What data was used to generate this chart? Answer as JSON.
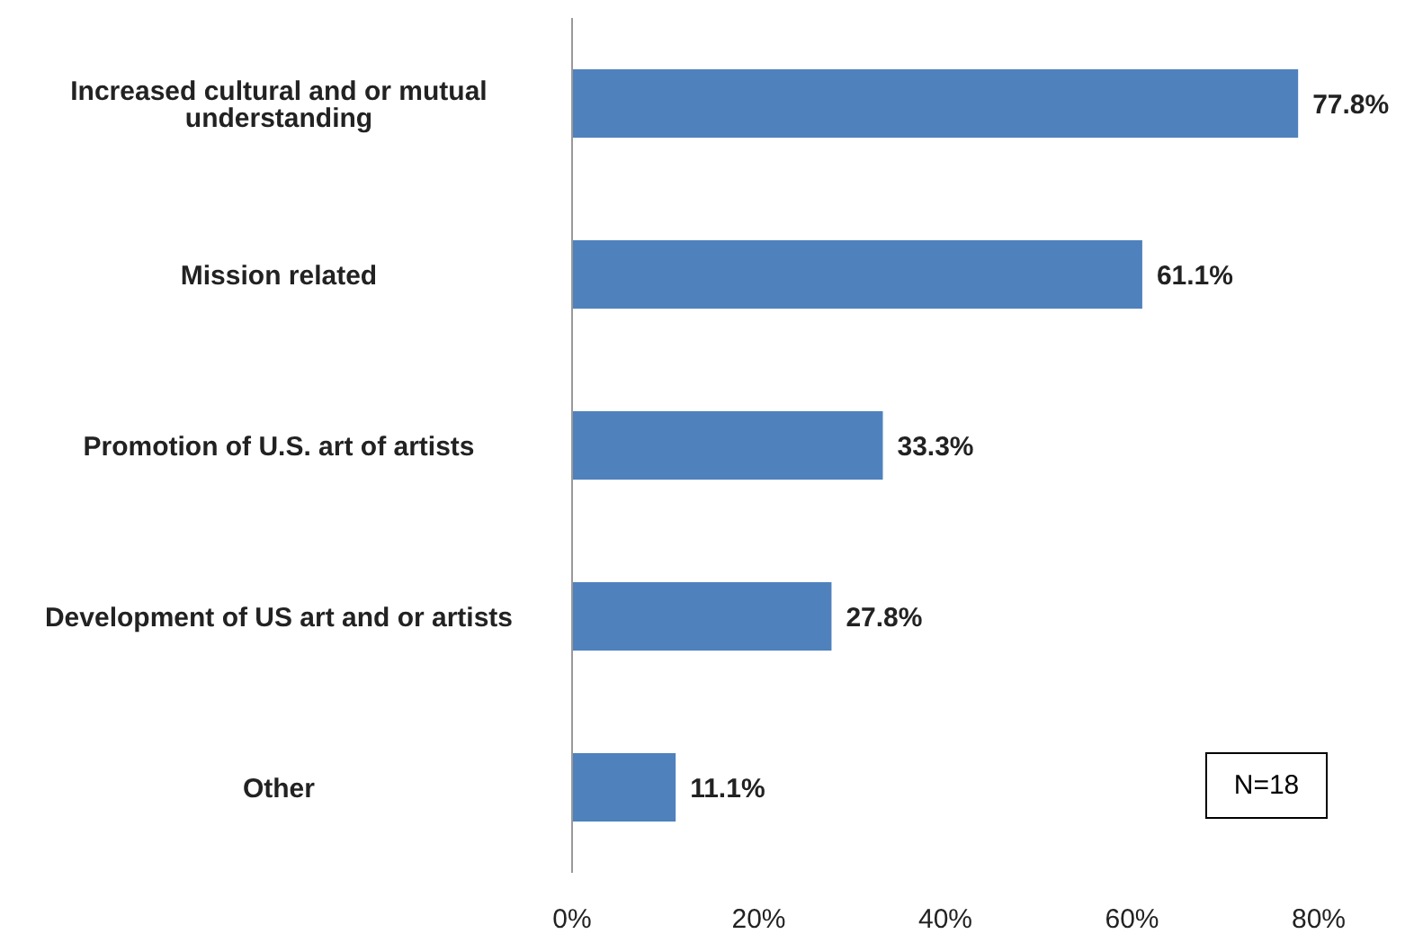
{
  "chart_data": {
    "type": "bar",
    "orientation": "horizontal",
    "categories": [
      "Increased cultural and or mutual understanding",
      "Mission related",
      "Promotion of U.S. art of artists",
      "Development of US art and or artists",
      "Other"
    ],
    "values": [
      77.8,
      61.1,
      33.3,
      27.8,
      11.1
    ],
    "value_labels": [
      "77.8%",
      "61.1%",
      "33.3%",
      "27.8%",
      "11.1%"
    ],
    "color": "#4f81bd",
    "xlim": [
      0,
      80
    ],
    "xticks": [
      {
        "value": 0,
        "label": "0%"
      },
      {
        "value": 20,
        "label": "20%"
      },
      {
        "value": 40,
        "label": "40%"
      },
      {
        "value": 60,
        "label": "60%"
      },
      {
        "value": 80,
        "label": "80%"
      }
    ],
    "annotations": [
      "N=18"
    ],
    "grid": false,
    "legend": false
  }
}
